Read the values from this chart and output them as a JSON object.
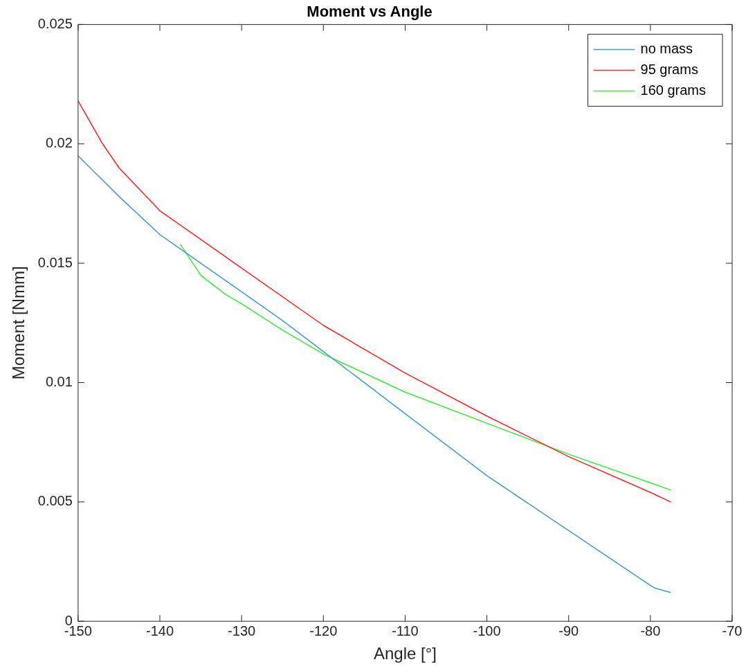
{
  "chart_data": {
    "type": "line",
    "title": "Moment vs Angle",
    "xlabel": "Angle [°]",
    "ylabel": "Moment [Nmm]",
    "xlim": [
      -150,
      -70
    ],
    "xticks": [
      -150,
      -140,
      -130,
      -120,
      -110,
      -100,
      -90,
      -80,
      -70
    ],
    "ylim": [
      0,
      0.025
    ],
    "yticks": [
      0,
      0.005,
      0.01,
      0.015,
      0.02,
      0.025
    ],
    "legend": "top right",
    "grid": false,
    "marker": "none",
    "line_style": "solid",
    "series": [
      {
        "name": "no mass",
        "color": "#3d9ad8",
        "x": [
          -150,
          -145,
          -140,
          -137.5,
          -135,
          -130,
          -125,
          -120,
          -110,
          -100,
          -90,
          -80,
          -79.5,
          -77.5
        ],
        "values": [
          0.0195,
          0.0178,
          0.0162,
          0.0156,
          0.015,
          0.0138,
          0.0126,
          0.0113,
          0.0087,
          0.0061,
          0.0038,
          0.0015,
          0.0014,
          0.0012
        ]
      },
      {
        "name": "95 grams",
        "color": "#ff2020",
        "x": [
          -150,
          -147,
          -145,
          -140,
          -135,
          -130,
          -120,
          -110,
          -100,
          -90,
          -80,
          -77.5
        ],
        "values": [
          0.0218,
          0.02,
          0.019,
          0.0172,
          0.016,
          0.0148,
          0.0124,
          0.0104,
          0.0086,
          0.0069,
          0.0054,
          0.005
        ]
      },
      {
        "name": "160 grams",
        "color": "#33ee33",
        "x": [
          -137.5,
          -135,
          -132,
          -130,
          -125,
          -120,
          -110,
          -100,
          -90,
          -80,
          -77.5
        ],
        "values": [
          0.0158,
          0.0145,
          0.0137,
          0.0133,
          0.0122,
          0.0112,
          0.0096,
          0.0083,
          0.007,
          0.0058,
          0.0055
        ]
      }
    ]
  }
}
